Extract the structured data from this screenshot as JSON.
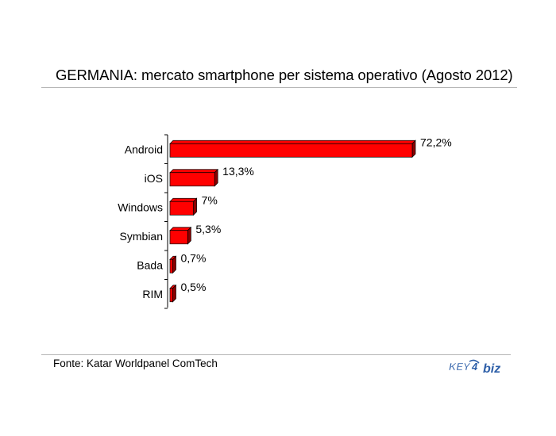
{
  "chart_data": {
    "type": "bar",
    "orientation": "horizontal",
    "title": "GERMANIA: mercato smartphone per sistema operativo (Agosto 2012)",
    "categories": [
      "Android",
      "iOS",
      "Windows",
      "Symbian",
      "Bada",
      "RIM"
    ],
    "values": [
      72.2,
      13.3,
      7,
      5.3,
      0.7,
      0.5
    ],
    "value_labels": [
      "72,2%",
      "13,3%",
      "7%",
      "5,3%",
      "0,7%",
      "0,5%"
    ],
    "xlabel": "",
    "ylabel": "",
    "xlim": [
      0,
      72.2
    ],
    "grid": false,
    "legend": false,
    "bar_color": "#ff0000",
    "bar_dark_color": "#8b0000"
  },
  "source_text": "Fonte: Katar Worldpanel ComTech",
  "logo": {
    "left": "KEY",
    "num": "4",
    "right": "biz",
    "color": "#2e5fa8"
  }
}
